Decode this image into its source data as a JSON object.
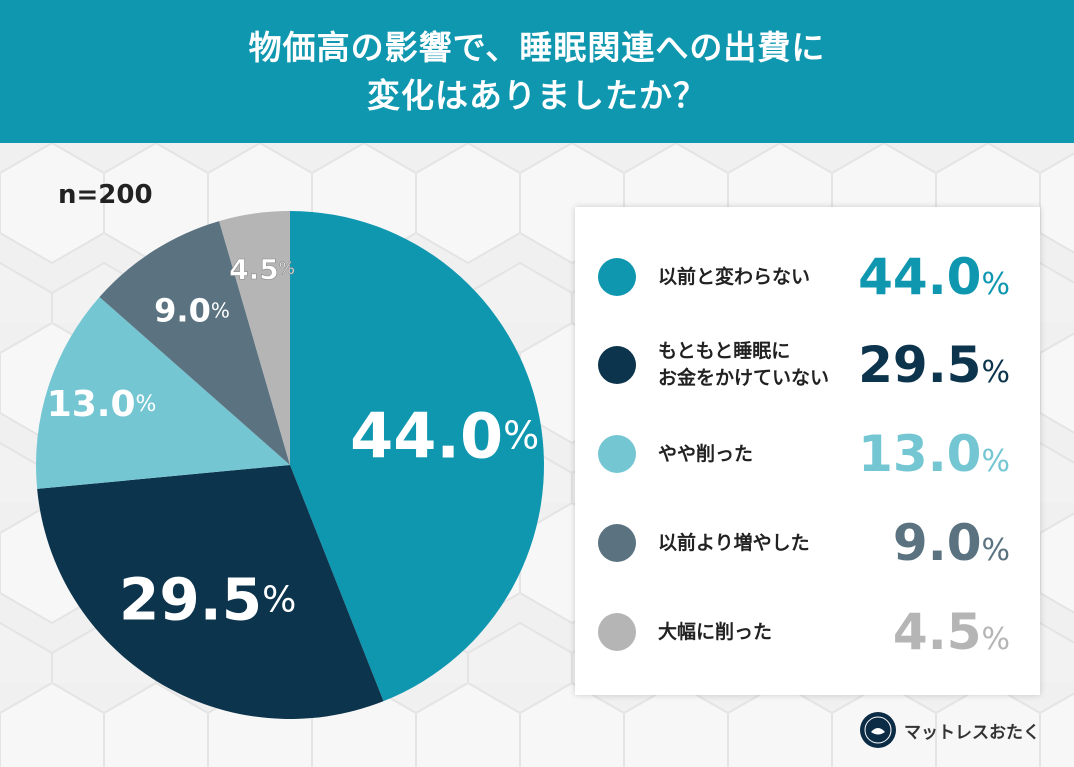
{
  "header": {
    "line1": "物価高の影響で、睡眠関連への出費に",
    "line2": "変化はありましたか？"
  },
  "sample_size": "n=200",
  "chart_data": {
    "type": "pie",
    "title": "物価高の影響で、睡眠関連への出費に変化はありましたか？",
    "unit": "%",
    "slices": [
      {
        "label": "以前と変わらない",
        "value": 44.0,
        "display": "44.0",
        "color": "#0f97b0",
        "label_color": "#ffffff"
      },
      {
        "label": "もともと睡眠に\nお金をかけていない",
        "value": 29.5,
        "display": "29.5",
        "color": "#0c344c",
        "label_color": "#ffffff"
      },
      {
        "label": "やや削った",
        "value": 13.0,
        "display": "13.0",
        "color": "#74c6d3",
        "label_color": "#ffffff"
      },
      {
        "label": "以前より増やした",
        "value": 9.0,
        "display": "9.0",
        "color": "#5b7381",
        "label_color": "#ffffff"
      },
      {
        "label": "大幅に削った",
        "value": 4.5,
        "display": "4.5",
        "color": "#b5b5b5",
        "label_color": "#ffffff"
      }
    ]
  },
  "legend": {
    "items": [
      {
        "label": "以前と変わらない",
        "value": "44.0",
        "unit": "%",
        "color": "#0f97b0"
      },
      {
        "label": "もともと睡眠に\nお金をかけていない",
        "value": "29.5",
        "unit": "%",
        "color": "#0c344c"
      },
      {
        "label": "やや削った",
        "value": "13.0",
        "unit": "%",
        "color": "#74c6d3"
      },
      {
        "label": "以前より増やした",
        "value": "9.0",
        "unit": "%",
        "color": "#5b7381"
      },
      {
        "label": "大幅に削った",
        "value": "4.5",
        "unit": "%",
        "color": "#b5b5b5"
      }
    ]
  },
  "brand": {
    "name": "マットレスおたく",
    "icon": "brand-logo-icon"
  }
}
